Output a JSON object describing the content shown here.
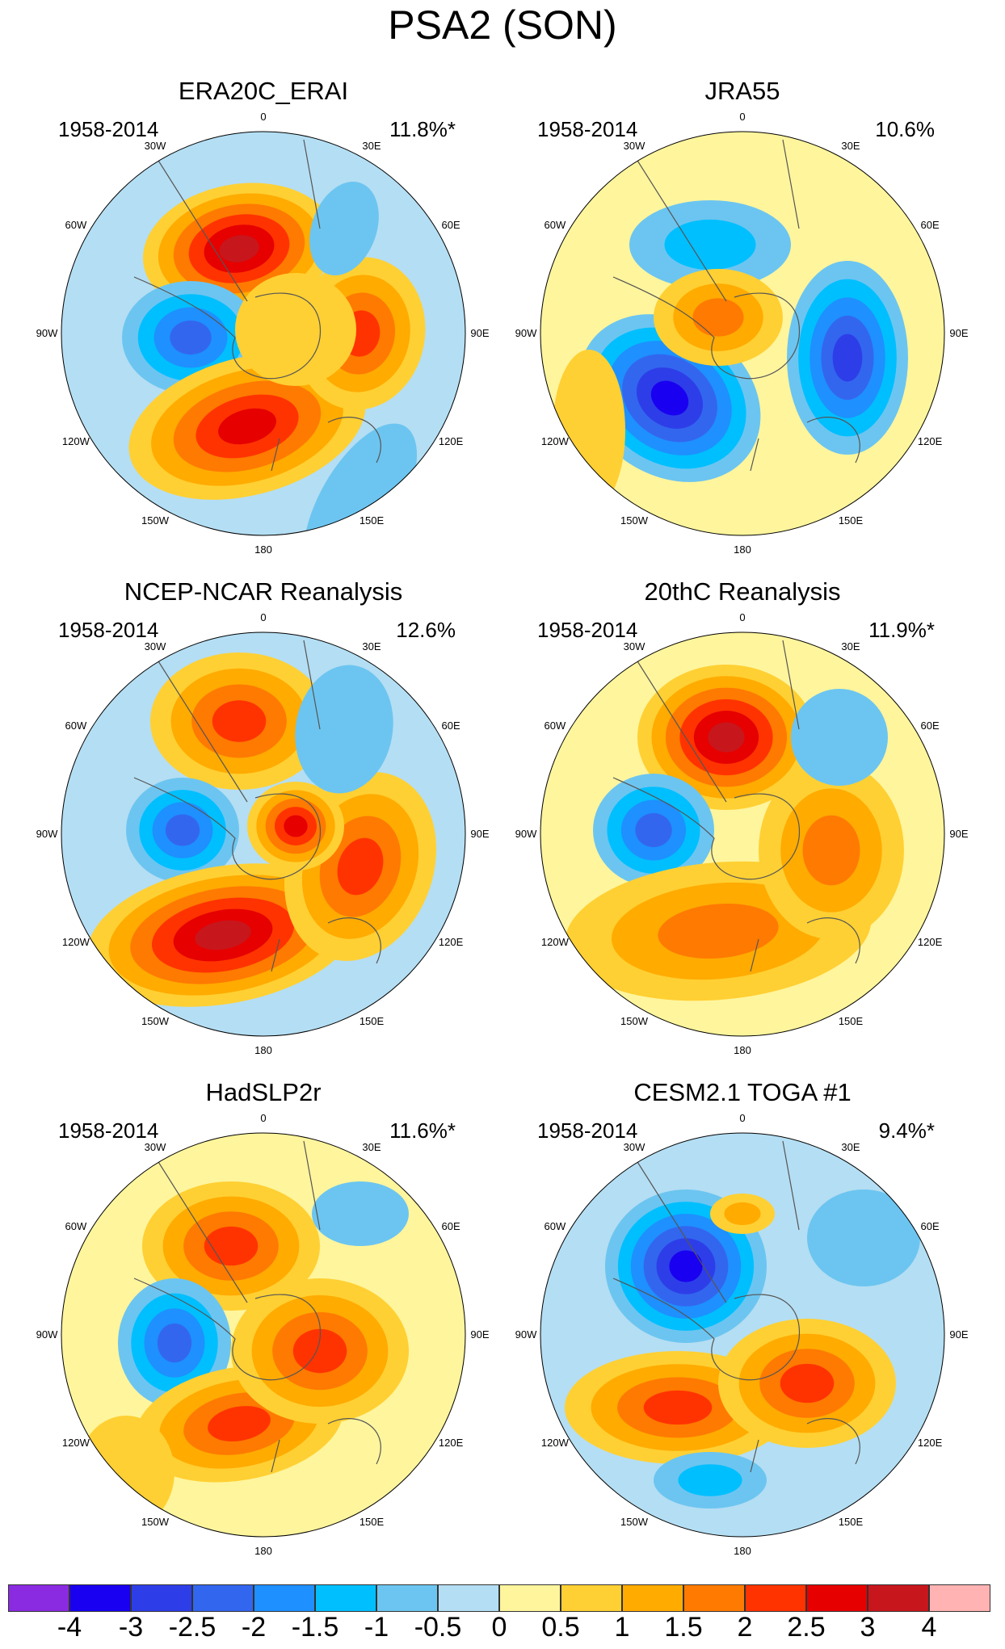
{
  "title": "PSA2 (SON)",
  "lon_labels": [
    "0",
    "30E",
    "60E",
    "90E",
    "120E",
    "150E",
    "180",
    "150W",
    "120W",
    "90W",
    "60W",
    "30W"
  ],
  "panels": [
    {
      "title": "ERA20C_ERAI",
      "period": "1958-2014",
      "variance": "11.8%*"
    },
    {
      "title": "JRA55",
      "period": "1958-2014",
      "variance": "10.6%"
    },
    {
      "title": "NCEP-NCAR Reanalysis",
      "period": "1958-2014",
      "variance": "12.6%"
    },
    {
      "title": "20thC Reanalysis",
      "period": "1958-2014",
      "variance": "11.9%*"
    },
    {
      "title": "HadSLP2r",
      "period": "1958-2014",
      "variance": "11.6%*"
    },
    {
      "title": "CESM2.1 TOGA #1",
      "period": "1958-2014",
      "variance": "9.4%*"
    }
  ],
  "colorbar": {
    "colors": [
      "#8a2be2",
      "#1a00f0",
      "#2d3ee8",
      "#3366ee",
      "#1e90ff",
      "#00bfff",
      "#6cc5f0",
      "#b4def3",
      "#fff59d",
      "#ffd033",
      "#ffab00",
      "#ff7a00",
      "#ff3300",
      "#e60000",
      "#c8161d",
      "#ffb3b3"
    ],
    "labels": [
      "-4",
      "-3",
      "-2.5",
      "-2",
      "-1.5",
      "-1",
      "-0.5",
      "0",
      "0.5",
      "1",
      "1.5",
      "2",
      "2.5",
      "3",
      "4"
    ]
  },
  "chart_data": {
    "type": "heatmap",
    "title": "PSA2 (SON)",
    "levels": [
      -4,
      -3,
      -2.5,
      -2,
      -1.5,
      -1,
      -0.5,
      0,
      0.5,
      1,
      1.5,
      2,
      2.5,
      3,
      4
    ],
    "approximate_extrema": [
      {
        "panel": "ERA20C_ERAI",
        "features": [
          {
            "sign": "+",
            "max": 3
          },
          {
            "sign": "-",
            "min": -2
          },
          {
            "sign": "+",
            "max": 2.5
          },
          {
            "sign": "+",
            "max": 2
          }
        ]
      },
      {
        "panel": "JRA55",
        "features": [
          {
            "sign": "-",
            "min": -3
          },
          {
            "sign": "-",
            "min": -2.5
          },
          {
            "sign": "-",
            "min": -1
          },
          {
            "sign": "+",
            "max": 1.5
          }
        ]
      },
      {
        "panel": "NCEP-NCAR Reanalysis",
        "features": [
          {
            "sign": "+",
            "max": 3
          },
          {
            "sign": "-",
            "min": -2
          },
          {
            "sign": "+",
            "max": 2
          }
        ]
      },
      {
        "panel": "20thC Reanalysis",
        "features": [
          {
            "sign": "+",
            "max": 3
          },
          {
            "sign": "-",
            "min": -2
          },
          {
            "sign": "+",
            "max": 1.5
          }
        ]
      },
      {
        "panel": "HadSLP2r",
        "features": [
          {
            "sign": "+",
            "max": 2
          },
          {
            "sign": "-",
            "min": -2
          },
          {
            "sign": "+",
            "max": 2
          }
        ]
      },
      {
        "panel": "CESM2.1 TOGA #1",
        "features": [
          {
            "sign": "-",
            "min": -3
          },
          {
            "sign": "+",
            "max": 2
          },
          {
            "sign": "-",
            "min": -1
          }
        ]
      }
    ]
  }
}
